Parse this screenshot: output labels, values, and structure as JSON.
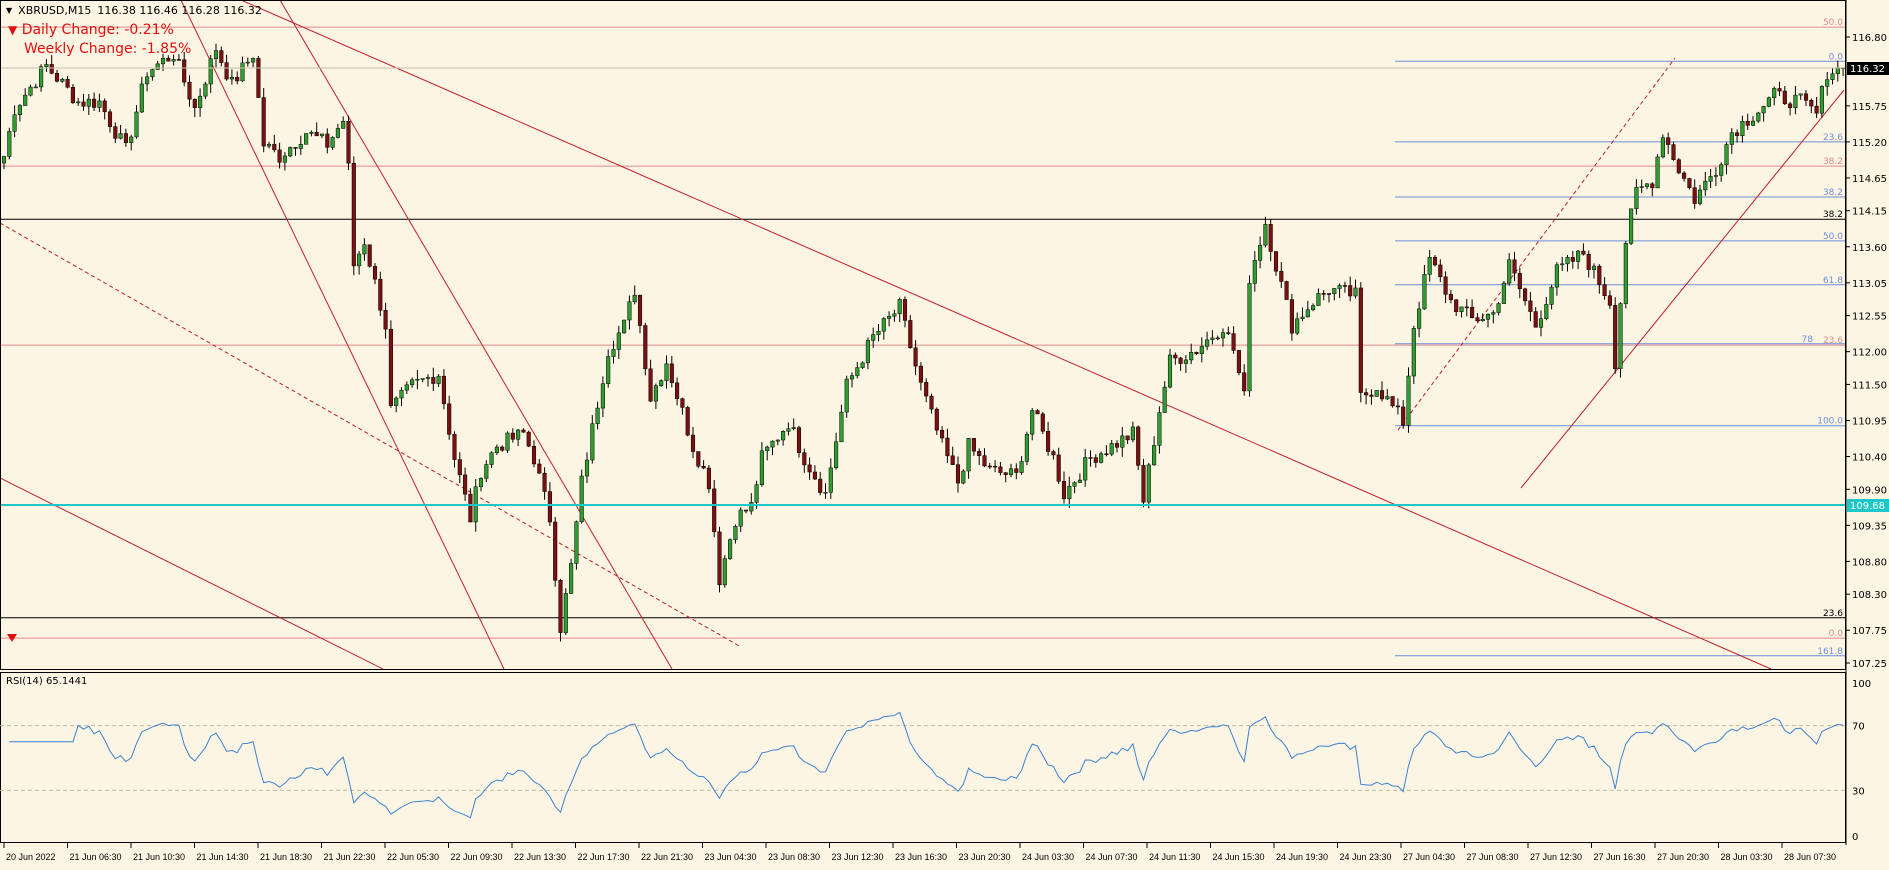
{
  "header": {
    "symbol": "XBRUSD,M15",
    "ohlc": "116.38 116.46 116.28 116.32"
  },
  "indicators": {
    "daily_change": "Daily Change: -0.21%",
    "weekly_change": "Weekly Change: -1.85%"
  },
  "rsi": {
    "label": "RSI(14) 65.1441",
    "levels": [
      "100",
      "70",
      "30",
      "0"
    ]
  },
  "colors": {
    "bull": "#2f9d2f",
    "bear": "#7a1010",
    "trend": "#c0202a",
    "fib_blue": "#6b8fd8",
    "fib_red": "#e08a8a",
    "support": "#1fc8c8",
    "rsi": "#3b82d0",
    "background": "#fdf5e4"
  },
  "chart_data": {
    "type": "candlestick",
    "title": "XBRUSD,M15",
    "ylim": [
      107.25,
      116.9
    ],
    "y_ticks": [
      "116.80",
      "115.75",
      "115.20",
      "114.65",
      "114.15",
      "113.60",
      "113.05",
      "112.55",
      "112.00",
      "111.50",
      "110.95",
      "110.40",
      "109.90",
      "109.35",
      "108.80",
      "108.30",
      "107.75",
      "107.25"
    ],
    "x_ticks": [
      "20 Jun 2022",
      "21 Jun 06:30",
      "21 Jun 10:30",
      "21 Jun 14:30",
      "21 Jun 18:30",
      "21 Jun 22:30",
      "22 Jun 05:30",
      "22 Jun 09:30",
      "22 Jun 13:30",
      "22 Jun 17:30",
      "22 Jun 21:30",
      "23 Jun 04:30",
      "23 Jun 08:30",
      "23 Jun 12:30",
      "23 Jun 16:30",
      "23 Jun 20:30",
      "24 Jun 03:30",
      "24 Jun 07:30",
      "24 Jun 11:30",
      "24 Jun 15:30",
      "24 Jun 19:30",
      "24 Jun 23:30",
      "27 Jun 04:30",
      "27 Jun 08:30",
      "27 Jun 12:30",
      "27 Jun 16:30",
      "27 Jun 20:30",
      "28 Jun 03:30",
      "28 Jun 07:30"
    ],
    "bars": 348,
    "close_path": [
      [
        0,
        114.98
      ],
      [
        2,
        115.71
      ],
      [
        8,
        116.36
      ],
      [
        14,
        115.81
      ],
      [
        18,
        115.81
      ],
      [
        23,
        115.07
      ],
      [
        27,
        116.27
      ],
      [
        32,
        116.54
      ],
      [
        36,
        115.71
      ],
      [
        40,
        116.63
      ],
      [
        43,
        116.08
      ],
      [
        47,
        116.54
      ],
      [
        49,
        115.16
      ],
      [
        52,
        114.98
      ],
      [
        57,
        115.35
      ],
      [
        61,
        115.16
      ],
      [
        64,
        115.53
      ],
      [
        65,
        114.79
      ],
      [
        66,
        113.32
      ],
      [
        68,
        113.69
      ],
      [
        72,
        112.4
      ],
      [
        73,
        111.11
      ],
      [
        77,
        111.48
      ],
      [
        82,
        111.67
      ],
      [
        85,
        110.38
      ],
      [
        88,
        109.46
      ],
      [
        90,
        110.19
      ],
      [
        93,
        110.56
      ],
      [
        98,
        110.75
      ],
      [
        100,
        110.38
      ],
      [
        103,
        109.46
      ],
      [
        105,
        107.8
      ],
      [
        107,
        108.72
      ],
      [
        109,
        110.01
      ],
      [
        114,
        112.03
      ],
      [
        117,
        112.4
      ],
      [
        119,
        112.95
      ],
      [
        122,
        111.3
      ],
      [
        125,
        111.85
      ],
      [
        130,
        110.56
      ],
      [
        133,
        110.01
      ],
      [
        135,
        108.54
      ],
      [
        138,
        109.46
      ],
      [
        141,
        109.64
      ],
      [
        143,
        110.38
      ],
      [
        148,
        110.93
      ],
      [
        151,
        110.38
      ],
      [
        155,
        109.83
      ],
      [
        159,
        111.48
      ],
      [
        164,
        112.22
      ],
      [
        169,
        112.68
      ],
      [
        173,
        111.48
      ],
      [
        177,
        110.56
      ],
      [
        180,
        110.01
      ],
      [
        182,
        110.56
      ],
      [
        186,
        110.19
      ],
      [
        191,
        110.1
      ],
      [
        194,
        111.11
      ],
      [
        198,
        110.38
      ],
      [
        200,
        109.83
      ],
      [
        205,
        110.38
      ],
      [
        209,
        110.56
      ],
      [
        213,
        110.75
      ],
      [
        215,
        109.73
      ],
      [
        218,
        111.11
      ],
      [
        220,
        111.85
      ],
      [
        225,
        112.03
      ],
      [
        230,
        112.4
      ],
      [
        232,
        112.03
      ],
      [
        234,
        111.3
      ],
      [
        235,
        113.14
      ],
      [
        238,
        113.97
      ],
      [
        240,
        113.32
      ],
      [
        243,
        112.4
      ],
      [
        247,
        112.77
      ],
      [
        250,
        112.95
      ],
      [
        255,
        112.86
      ],
      [
        256,
        111.3
      ],
      [
        259,
        111.48
      ],
      [
        264,
        110.93
      ],
      [
        266,
        112.4
      ],
      [
        269,
        113.41
      ],
      [
        273,
        112.77
      ],
      [
        277,
        112.49
      ],
      [
        281,
        112.58
      ],
      [
        284,
        113.32
      ],
      [
        289,
        112.4
      ],
      [
        293,
        113.22
      ],
      [
        298,
        113.5
      ],
      [
        303,
        112.77
      ],
      [
        304,
        111.85
      ],
      [
        306,
        113.69
      ],
      [
        308,
        114.43
      ],
      [
        311,
        114.61
      ],
      [
        313,
        115.35
      ],
      [
        316,
        114.79
      ],
      [
        319,
        114.33
      ],
      [
        323,
        114.79
      ],
      [
        326,
        115.35
      ],
      [
        330,
        115.62
      ],
      [
        334,
        115.9
      ],
      [
        339,
        115.81
      ],
      [
        342,
        115.62
      ],
      [
        344,
        116.27
      ],
      [
        347,
        116.32
      ]
    ],
    "current_price": "116.32",
    "support_level": "109.68",
    "horizontal_levels": [
      {
        "price": 116.95,
        "label": "50.0",
        "color": "fib_red",
        "full": true
      },
      {
        "price": 116.43,
        "label": "0.0",
        "color": "fib_blue",
        "full": false
      },
      {
        "price": 115.2,
        "label": "23.6",
        "color": "fib_blue",
        "full": false
      },
      {
        "price": 114.83,
        "label": "38.2",
        "color": "fib_red",
        "full": true
      },
      {
        "price": 114.36,
        "label": "38.2",
        "color": "fib_blue",
        "full": false
      },
      {
        "price": 114.02,
        "label": "38.2",
        "color": "black",
        "full": true
      },
      {
        "price": 113.69,
        "label": "50.0",
        "color": "fib_blue",
        "full": false
      },
      {
        "price": 113.02,
        "label": "61.8",
        "color": "fib_blue",
        "full": false
      },
      {
        "price": 112.1,
        "label": "23.6",
        "color": "fib_red",
        "full": true
      },
      {
        "price": 112.12,
        "label": "78",
        "color": "fib_blue",
        "full": false
      },
      {
        "price": 110.87,
        "label": "100.0",
        "color": "fib_blue",
        "full": false
      },
      {
        "price": 107.94,
        "label": "23.6",
        "color": "black",
        "full": true
      },
      {
        "price": 107.63,
        "label": "0.0",
        "color": "fib_red",
        "full": true
      },
      {
        "price": 107.36,
        "label": "161.8",
        "color": "fib_blue",
        "full": false
      }
    ],
    "rsi_levels": [
      70,
      30
    ],
    "rsi_range": [
      0,
      100
    ]
  }
}
